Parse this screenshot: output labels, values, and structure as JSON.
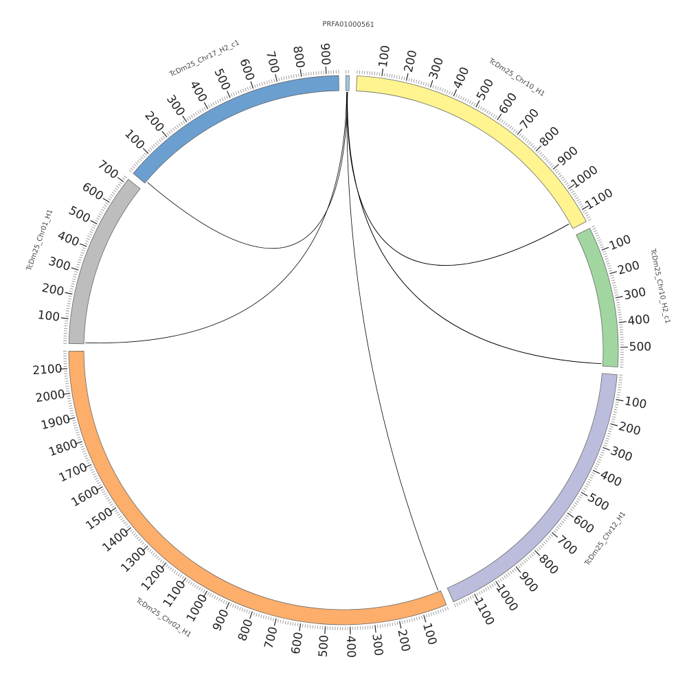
{
  "chromosomes": [
    {
      "id": "PRFA01000561",
      "length": 14,
      "color": "#9ecae1",
      "ticks": [],
      "label": "PRFA01000561"
    },
    {
      "id": "TcDm25_Chr10_H1",
      "length": 1150,
      "color": "#fff48f",
      "ticks": [
        100,
        200,
        300,
        400,
        500,
        600,
        700,
        800,
        900,
        1000,
        1100
      ],
      "label": "TcDm25_Chr10_H1"
    },
    {
      "id": "TcDm25_Chr10_H2_c1",
      "length": 580,
      "color": "#a1d6a0",
      "ticks": [
        100,
        200,
        300,
        400,
        500
      ],
      "label": "TcDm25_Chr10_H2_c1"
    },
    {
      "id": "TcDm25_Chr12_H1",
      "length": 1190,
      "color": "#bcbddc",
      "ticks": [
        100,
        200,
        300,
        400,
        500,
        600,
        700,
        800,
        900,
        1000,
        1100
      ],
      "label": "TcDm25_Chr12_H1"
    },
    {
      "id": "TcDm25_Chr02_H1",
      "length": 2170,
      "color": "#fdae6b",
      "ticks": [
        100,
        200,
        300,
        400,
        500,
        600,
        700,
        800,
        900,
        1000,
        1100,
        1200,
        1300,
        1400,
        1500,
        1600,
        1700,
        1800,
        1900,
        2000,
        2100
      ],
      "label": "TcDm25_Chr02_H1"
    },
    {
      "id": "TcDm25_Chr01_H1",
      "length": 720,
      "color": "#bdbdbd",
      "ticks": [
        100,
        200,
        300,
        400,
        500,
        600,
        700
      ],
      "label": "TcDm25_Chr01_H1"
    },
    {
      "id": "TcDm25_Chr17_H2_c1",
      "length": 950,
      "color": "#6a9fd0",
      "ticks": [
        100,
        200,
        300,
        400,
        500,
        600,
        700,
        800,
        900
      ],
      "label": "TcDm25_Chr17_H2_c1"
    }
  ],
  "links": [
    {
      "from": "PRFA01000561",
      "from_pos": 6,
      "to": "TcDm25_Chr10_H1",
      "to_pos": 1125,
      "color": "#fff48f"
    },
    {
      "from": "PRFA01000561",
      "from_pos": 7,
      "to": "TcDm25_Chr10_H2_c1",
      "to_pos": 570,
      "color": "#a1d6a0"
    },
    {
      "from": "PRFA01000561",
      "from_pos": 5,
      "to": "TcDm25_Chr02_H1",
      "to_pos": 10,
      "color": "#000000"
    },
    {
      "from": "PRFA01000561",
      "from_pos": 4,
      "to": "TcDm25_Chr01_H1",
      "to_pos": 5,
      "color": "#000000"
    },
    {
      "from": "PRFA01000561",
      "from_pos": 8,
      "to": "TcDm25_Chr17_H2_c1",
      "to_pos": 10,
      "color": "#000000"
    }
  ]
}
